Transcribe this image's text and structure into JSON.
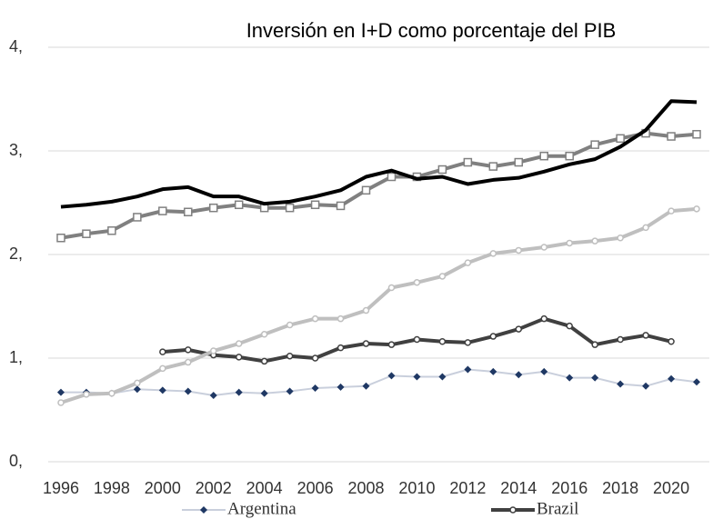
{
  "chart_data": {
    "type": "line",
    "title": "Inversión en I+D como porcentaje del PIB",
    "x": [
      1996,
      1997,
      1998,
      1999,
      2000,
      2001,
      2002,
      2003,
      2004,
      2005,
      2006,
      2007,
      2008,
      2009,
      2010,
      2011,
      2012,
      2013,
      2014,
      2015,
      2016,
      2017,
      2018,
      2019,
      2020,
      2021
    ],
    "xlim": [
      1995.5,
      2021.5
    ],
    "xticks": [
      1996,
      1998,
      2000,
      2002,
      2004,
      2006,
      2008,
      2010,
      2012,
      2014,
      2016,
      2018,
      2020
    ],
    "ylim": [
      0,
      4
    ],
    "yticks": [
      {
        "value": 0,
        "label": "0,"
      },
      {
        "value": 1,
        "label": "1,"
      },
      {
        "value": 2,
        "label": "2,"
      },
      {
        "value": 3,
        "label": "3,"
      },
      {
        "value": 4,
        "label": "4,"
      }
    ],
    "grid": true,
    "legend": "bottom",
    "series": [
      {
        "name": "Argentina",
        "color": "#1f3864",
        "marker": "diamond",
        "values": [
          0.67,
          0.67,
          0.66,
          0.7,
          0.69,
          0.68,
          0.64,
          0.67,
          0.66,
          0.68,
          0.71,
          0.72,
          0.73,
          0.83,
          0.82,
          0.82,
          0.89,
          0.87,
          0.84,
          0.87,
          0.81,
          0.81,
          0.75,
          0.73,
          0.8,
          0.77
        ]
      },
      {
        "name": "Brazil",
        "color": "#404040",
        "marker": "circle",
        "values": [
          null,
          null,
          null,
          null,
          1.06,
          1.08,
          1.03,
          1.01,
          0.97,
          1.02,
          1.0,
          1.1,
          1.14,
          1.13,
          1.18,
          1.16,
          1.15,
          1.21,
          1.28,
          1.38,
          1.31,
          1.13,
          1.18,
          1.22,
          1.16,
          null
        ]
      },
      {
        "color": "#bfbfbf",
        "marker": "circle",
        "values": [
          0.57,
          0.65,
          0.66,
          0.76,
          0.9,
          0.96,
          1.07,
          1.14,
          1.23,
          1.32,
          1.38,
          1.38,
          1.46,
          1.68,
          1.73,
          1.79,
          1.92,
          2.01,
          2.04,
          2.07,
          2.11,
          2.13,
          2.16,
          2.26,
          2.42,
          2.44
        ]
      },
      {
        "color": "#808080",
        "marker": "square",
        "values": [
          2.16,
          2.2,
          2.23,
          2.36,
          2.42,
          2.41,
          2.45,
          2.48,
          2.45,
          2.45,
          2.48,
          2.47,
          2.62,
          2.75,
          2.75,
          2.82,
          2.89,
          2.85,
          2.89,
          2.95,
          2.95,
          3.06,
          3.12,
          3.17,
          3.14,
          3.16
        ]
      },
      {
        "color": "#000000",
        "marker": "none",
        "values": [
          2.46,
          2.48,
          2.51,
          2.56,
          2.63,
          2.65,
          2.56,
          2.56,
          2.49,
          2.51,
          2.56,
          2.62,
          2.75,
          2.81,
          2.73,
          2.75,
          2.68,
          2.72,
          2.74,
          2.8,
          2.87,
          2.92,
          3.04,
          3.2,
          3.48,
          3.47
        ]
      }
    ]
  }
}
